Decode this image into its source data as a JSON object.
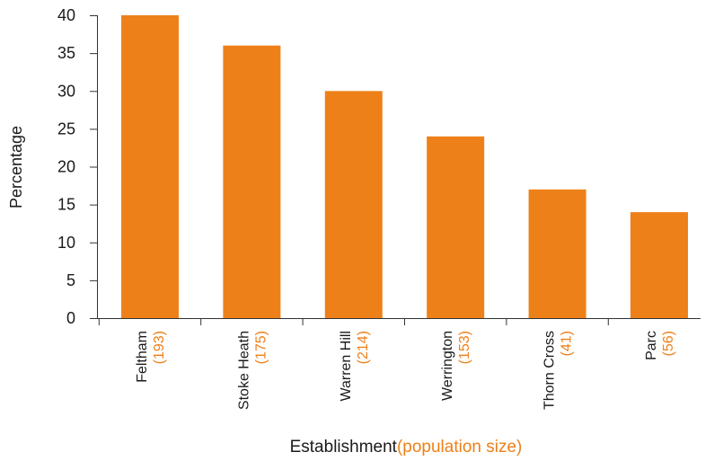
{
  "chart_data": {
    "type": "bar",
    "categories": [
      "Feltham",
      "Stoke Heath",
      "Warren Hill",
      "Werrington",
      "Thorn Cross",
      "Parc"
    ],
    "population_labels": [
      "(193)",
      "(175)",
      "(214)",
      "(153)",
      "(41)",
      "(56)"
    ],
    "values": [
      40,
      36,
      30,
      24,
      17,
      14
    ],
    "ylabel": "Percentage",
    "xlabel": "Establishment",
    "xlabel_note": "(population size)",
    "ylim": [
      0,
      40
    ],
    "yticks": [
      0,
      5,
      10,
      15,
      20,
      25,
      30,
      35,
      40
    ],
    "grid": false,
    "colors": {
      "bar": "#EE8019",
      "note": "#EE8019",
      "text": "#1a1a1a",
      "axis": "#333333"
    }
  }
}
